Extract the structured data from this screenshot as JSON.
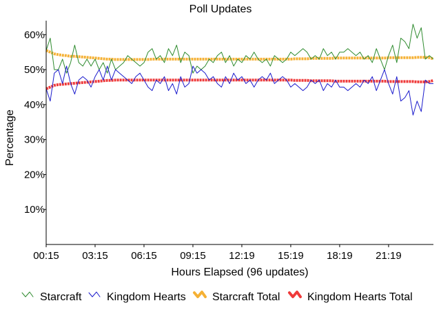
{
  "chart_data": {
    "type": "line",
    "title": "Poll Updates",
    "xlabel": "Hours Elapsed (96 updates)",
    "ylabel": "Percentage",
    "x_tick_labels": [
      "00:15",
      "03:15",
      "06:15",
      "09:15",
      "12:19",
      "15:19",
      "18:19",
      "21:19"
    ],
    "y_tick_labels": [
      "10%",
      "20%",
      "30%",
      "40%",
      "50%",
      "60%"
    ],
    "y_ticks": [
      10,
      20,
      30,
      40,
      50,
      60
    ],
    "ylim": [
      0,
      64
    ],
    "x_count": 96,
    "legend_position": "bottom",
    "grid": false,
    "series": [
      {
        "name": "Starcraft",
        "color": "#2e8b2e",
        "style": "thin",
        "values": [
          55.5,
          59,
          50,
          50,
          53,
          49,
          52,
          57,
          52,
          51,
          53,
          51,
          53,
          50,
          52,
          49,
          53,
          50,
          51,
          52,
          54,
          53,
          52,
          51,
          52,
          55,
          56,
          53,
          54,
          52,
          56,
          54,
          57,
          52,
          55,
          54,
          49,
          51,
          50,
          51,
          53,
          52,
          54,
          55,
          52,
          54,
          51,
          53,
          52,
          54,
          53,
          55,
          53,
          52,
          53,
          51,
          54,
          53,
          52,
          53,
          55,
          54,
          55,
          56,
          55,
          53,
          54,
          53,
          56,
          54,
          55,
          53,
          55,
          55,
          56,
          55,
          54,
          55,
          53,
          54,
          52,
          56,
          53,
          50,
          54,
          57,
          52,
          59,
          58,
          56,
          63,
          59,
          62,
          53,
          54,
          53
        ]
      },
      {
        "name": "Kingdom Hearts",
        "color": "#1a1acc",
        "style": "thin",
        "values": [
          44.5,
          41,
          49,
          50,
          46,
          51,
          46,
          43,
          47,
          48,
          47,
          45,
          48,
          50,
          47,
          51,
          47,
          50,
          49,
          48,
          47,
          46,
          48,
          49,
          47,
          45,
          44,
          47,
          46,
          48,
          44,
          46,
          43,
          48,
          45,
          46,
          51,
          49,
          50,
          49,
          47,
          48,
          46,
          45,
          48,
          46,
          49,
          47,
          48,
          46,
          47,
          45,
          47,
          48,
          47,
          49,
          46,
          47,
          48,
          47,
          45,
          46,
          45,
          44,
          45,
          47,
          46,
          47,
          44,
          46,
          45,
          47,
          45,
          45,
          44,
          45,
          46,
          45,
          47,
          46,
          48,
          44,
          47,
          50,
          46,
          43,
          48,
          41,
          42,
          44,
          37,
          41,
          38,
          47,
          46,
          46
        ]
      },
      {
        "name": "Starcraft Total",
        "color": "#f5b135",
        "style": "thick",
        "values": [
          55.5,
          55,
          54.5,
          54.3,
          54.1,
          54,
          53.8,
          53.8,
          53.7,
          53.6,
          53.5,
          53.4,
          53.3,
          53.2,
          53.1,
          53,
          53,
          52.9,
          52.9,
          52.9,
          52.9,
          52.9,
          52.9,
          52.9,
          52.9,
          52.9,
          53,
          53,
          53,
          53,
          53,
          53,
          53,
          53,
          53,
          53,
          53,
          53,
          53,
          53,
          53,
          53,
          53,
          53,
          53,
          53,
          53,
          53,
          53,
          53,
          53,
          53,
          53,
          53,
          53,
          53,
          53,
          53,
          53,
          53,
          53,
          53.1,
          53.1,
          53.1,
          53.1,
          53.2,
          53.2,
          53.2,
          53.2,
          53.2,
          53.2,
          53.3,
          53.3,
          53.3,
          53.3,
          53.3,
          53.3,
          53.3,
          53.3,
          53.3,
          53.3,
          53.3,
          53.3,
          53.3,
          53.4,
          53.4,
          53.4,
          53.4,
          53.4,
          53.4,
          53.4,
          53.5,
          53.5,
          53.5,
          53.4,
          53.1
        ]
      },
      {
        "name": "Kingdom Hearts Total",
        "color": "#ef3a3a",
        "style": "thick",
        "values": [
          44.5,
          45,
          45.5,
          45.7,
          45.8,
          45.9,
          46,
          46.1,
          46.2,
          46.3,
          46.4,
          46.5,
          46.6,
          46.7,
          46.8,
          46.9,
          46.9,
          47,
          47,
          47,
          47,
          47,
          47,
          47,
          47,
          47,
          47,
          47,
          47,
          47,
          47,
          47,
          47,
          47,
          47,
          47,
          47,
          47,
          47,
          47,
          47,
          47,
          47,
          47,
          47,
          47,
          47,
          47,
          47,
          47,
          47,
          47,
          47,
          47,
          47,
          47,
          47,
          47,
          47,
          47,
          47,
          46.9,
          46.9,
          46.9,
          46.9,
          46.8,
          46.8,
          46.8,
          46.8,
          46.8,
          46.8,
          46.7,
          46.7,
          46.7,
          46.7,
          46.7,
          46.7,
          46.7,
          46.7,
          46.7,
          46.7,
          46.7,
          46.7,
          46.7,
          46.6,
          46.6,
          46.6,
          46.6,
          46.6,
          46.6,
          46.6,
          46.5,
          46.5,
          46.5,
          46.6,
          46.9
        ]
      }
    ]
  }
}
